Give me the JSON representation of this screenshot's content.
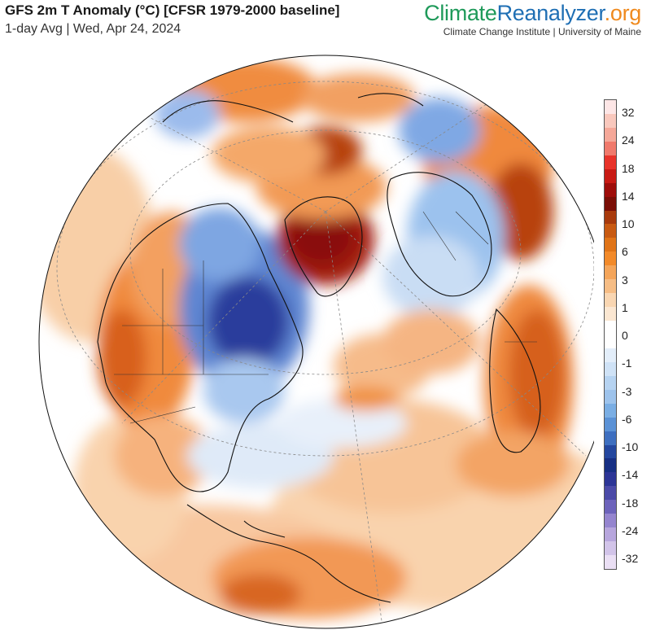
{
  "header": {
    "title": "GFS 2m T Anomaly (°C) [CFSR 1979-2000 baseline]",
    "subtitle": "1-day Avg | Wed, Apr 24, 2024"
  },
  "brand": {
    "name_part1": "Climate",
    "name_part2": "Reanalyzer",
    "name_part3": ".org",
    "tagline": "Climate Change Institute | University of Maine",
    "colors": {
      "part1": "#1f9a5a",
      "part2": "#1f6fb4",
      "part3": "#f08a1e"
    }
  },
  "map": {
    "projection": "orthographic globe centred over the North Atlantic / Arctic",
    "colors": {
      "ocean_background": "#ffffff",
      "coastline": "#111111",
      "graticule": "#888888"
    }
  },
  "legend": {
    "unit": "°C",
    "labels": [
      "32",
      "24",
      "18",
      "14",
      "10",
      "6",
      "3",
      "1",
      "0",
      "-1",
      "-3",
      "-6",
      "-10",
      "-14",
      "-18",
      "-24",
      "-32"
    ],
    "colors": [
      "#fde6e6",
      "#f9c8bd",
      "#f5a899",
      "#f07a6c",
      "#e8332a",
      "#c81a14",
      "#9e0d0a",
      "#7a0e06",
      "#a83a0c",
      "#c85a12",
      "#e07418",
      "#f28a2a",
      "#f4a55a",
      "#f6bd85",
      "#f9d6b2",
      "#fbe7d2",
      "#ffffff",
      "#ffffff",
      "#e3eefa",
      "#cfe2f6",
      "#b6d3f1",
      "#9dc3ec",
      "#7aaee4",
      "#5b92d6",
      "#3e6fc0",
      "#24479f",
      "#172f84",
      "#2c3596",
      "#4b4aa8",
      "#6d63bb",
      "#9585cf",
      "#b7a6dd",
      "#d2c4e9",
      "#eadff4"
    ]
  }
}
